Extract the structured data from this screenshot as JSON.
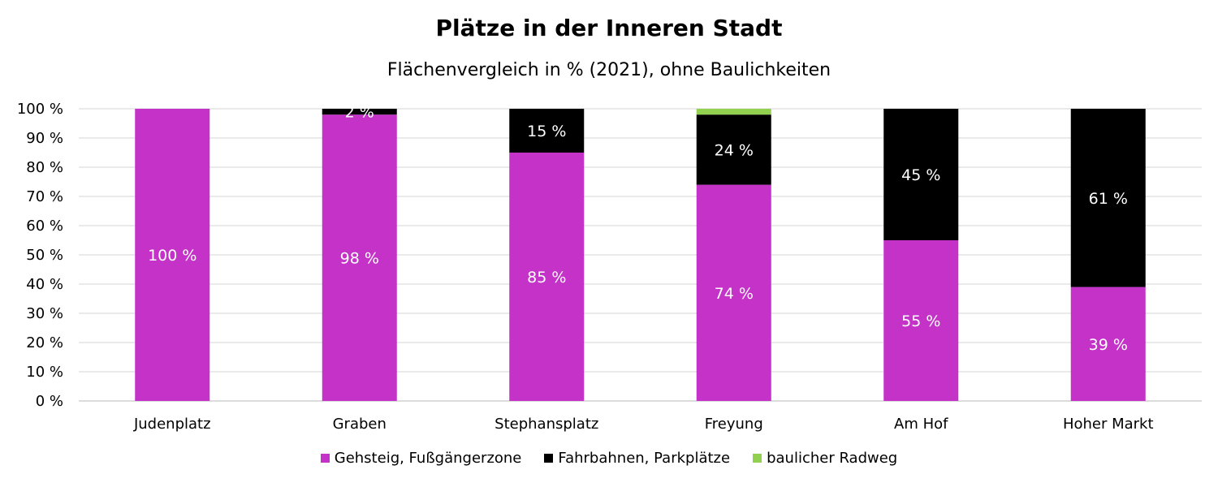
{
  "chart_data": {
    "type": "bar",
    "stacked": true,
    "title": "Plätze in der Inneren Stadt",
    "subtitle": "Flächenvergleich in % (2021), ohne Baulichkeiten",
    "categories": [
      "Judenplatz",
      "Graben",
      "Stephansplatz",
      "Freyung",
      "Am Hof",
      "Hoher Markt"
    ],
    "series": [
      {
        "name": "Gehsteig, Fußgängerzone",
        "color": "#c432c8",
        "values": [
          100,
          98,
          85,
          74,
          55,
          39
        ],
        "labels": [
          "100 %",
          "98 %",
          "85 %",
          "74 %",
          "55 %",
          "39 %"
        ]
      },
      {
        "name": "Fahrbahnen, Parkplätze",
        "color": "#000000",
        "values": [
          0,
          2,
          15,
          24,
          45,
          61
        ],
        "labels": [
          "",
          "2 %",
          "15 %",
          "24 %",
          "45 %",
          "61 %"
        ]
      },
      {
        "name": "baulicher Radweg",
        "color": "#92d050",
        "values": [
          0,
          0,
          0,
          2,
          0,
          0
        ],
        "labels": [
          "",
          "",
          "",
          "",
          "",
          ""
        ]
      }
    ],
    "ylim": [
      0,
      100
    ],
    "yticks": [
      0,
      10,
      20,
      30,
      40,
      50,
      60,
      70,
      80,
      90,
      100
    ],
    "ytick_labels": [
      "0 %",
      "10 %",
      "20 %",
      "30 %",
      "40 %",
      "50 %",
      "60 %",
      "70 %",
      "80 %",
      "90 %",
      "100 %"
    ],
    "grid": true,
    "legend_position": "bottom"
  }
}
